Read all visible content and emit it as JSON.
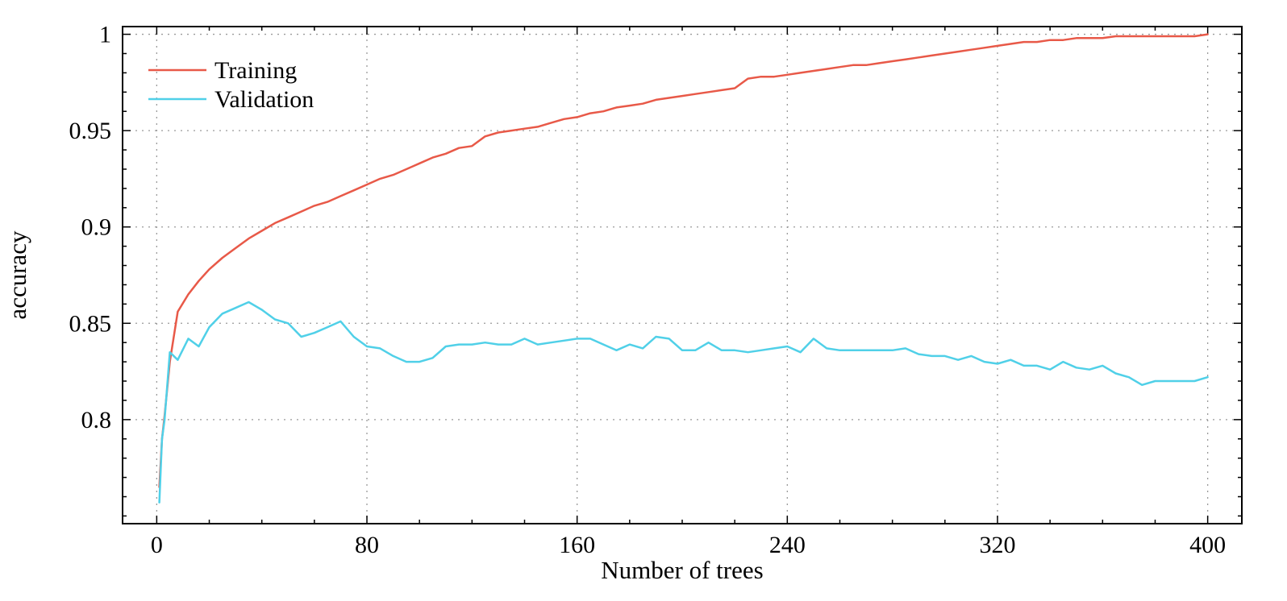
{
  "chart_data": {
    "type": "line",
    "title": "",
    "xlabel": "Number of trees",
    "ylabel": "accuracy",
    "xlim": [
      -13,
      413
    ],
    "ylim": [
      0.746,
      1.004
    ],
    "x_ticks": [
      0,
      80,
      160,
      240,
      320,
      400
    ],
    "x_tick_labels": [
      "0",
      "80",
      "160",
      "240",
      "320",
      "400"
    ],
    "y_ticks": [
      0.8,
      0.85,
      0.9,
      0.95,
      1
    ],
    "y_tick_labels": [
      "0.8",
      "0.85",
      "0.9",
      "0.95",
      "1"
    ],
    "x_minor_step": 20,
    "y_minor_step": 0.01,
    "grid": true,
    "grid_style": "dotted",
    "grid_color": "#9a9a9a",
    "border_color": "#000000",
    "legend_position": "top-left",
    "x": [
      1,
      2,
      3,
      5,
      8,
      12,
      16,
      20,
      25,
      30,
      35,
      40,
      45,
      50,
      55,
      60,
      65,
      70,
      75,
      80,
      85,
      90,
      95,
      100,
      105,
      110,
      115,
      120,
      125,
      130,
      135,
      140,
      145,
      150,
      155,
      160,
      165,
      170,
      175,
      180,
      185,
      190,
      195,
      200,
      205,
      210,
      215,
      220,
      225,
      230,
      235,
      240,
      245,
      250,
      255,
      260,
      265,
      270,
      275,
      280,
      285,
      290,
      295,
      300,
      305,
      310,
      315,
      320,
      325,
      330,
      335,
      340,
      345,
      350,
      355,
      360,
      365,
      370,
      375,
      380,
      385,
      390,
      395,
      400
    ],
    "series": [
      {
        "name": "Training",
        "color": "#e85948",
        "values": [
          0.765,
          0.79,
          0.802,
          0.83,
          0.856,
          0.865,
          0.872,
          0.878,
          0.884,
          0.889,
          0.894,
          0.898,
          0.902,
          0.905,
          0.908,
          0.911,
          0.913,
          0.916,
          0.919,
          0.922,
          0.925,
          0.927,
          0.93,
          0.933,
          0.936,
          0.938,
          0.941,
          0.942,
          0.947,
          0.949,
          0.95,
          0.951,
          0.952,
          0.954,
          0.956,
          0.957,
          0.959,
          0.96,
          0.962,
          0.963,
          0.964,
          0.966,
          0.967,
          0.968,
          0.969,
          0.97,
          0.971,
          0.972,
          0.977,
          0.978,
          0.978,
          0.979,
          0.98,
          0.981,
          0.982,
          0.983,
          0.984,
          0.984,
          0.985,
          0.986,
          0.987,
          0.988,
          0.989,
          0.99,
          0.991,
          0.992,
          0.993,
          0.994,
          0.995,
          0.996,
          0.996,
          0.997,
          0.997,
          0.998,
          0.998,
          0.998,
          0.999,
          0.999,
          0.999,
          0.999,
          0.999,
          0.999,
          0.999,
          1.0
        ]
      },
      {
        "name": "Validation",
        "color": "#50d0e8",
        "values": [
          0.757,
          0.79,
          0.8,
          0.835,
          0.831,
          0.842,
          0.838,
          0.848,
          0.855,
          0.858,
          0.861,
          0.857,
          0.852,
          0.85,
          0.843,
          0.845,
          0.848,
          0.851,
          0.843,
          0.838,
          0.837,
          0.833,
          0.83,
          0.83,
          0.832,
          0.838,
          0.839,
          0.839,
          0.84,
          0.839,
          0.839,
          0.842,
          0.839,
          0.84,
          0.841,
          0.842,
          0.842,
          0.839,
          0.836,
          0.839,
          0.837,
          0.843,
          0.842,
          0.836,
          0.836,
          0.84,
          0.836,
          0.836,
          0.835,
          0.836,
          0.837,
          0.838,
          0.835,
          0.842,
          0.837,
          0.836,
          0.836,
          0.836,
          0.836,
          0.836,
          0.837,
          0.834,
          0.833,
          0.833,
          0.831,
          0.833,
          0.83,
          0.829,
          0.831,
          0.828,
          0.828,
          0.826,
          0.83,
          0.827,
          0.826,
          0.828,
          0.824,
          0.822,
          0.818,
          0.82,
          0.82,
          0.82,
          0.82,
          0.822
        ]
      }
    ]
  }
}
